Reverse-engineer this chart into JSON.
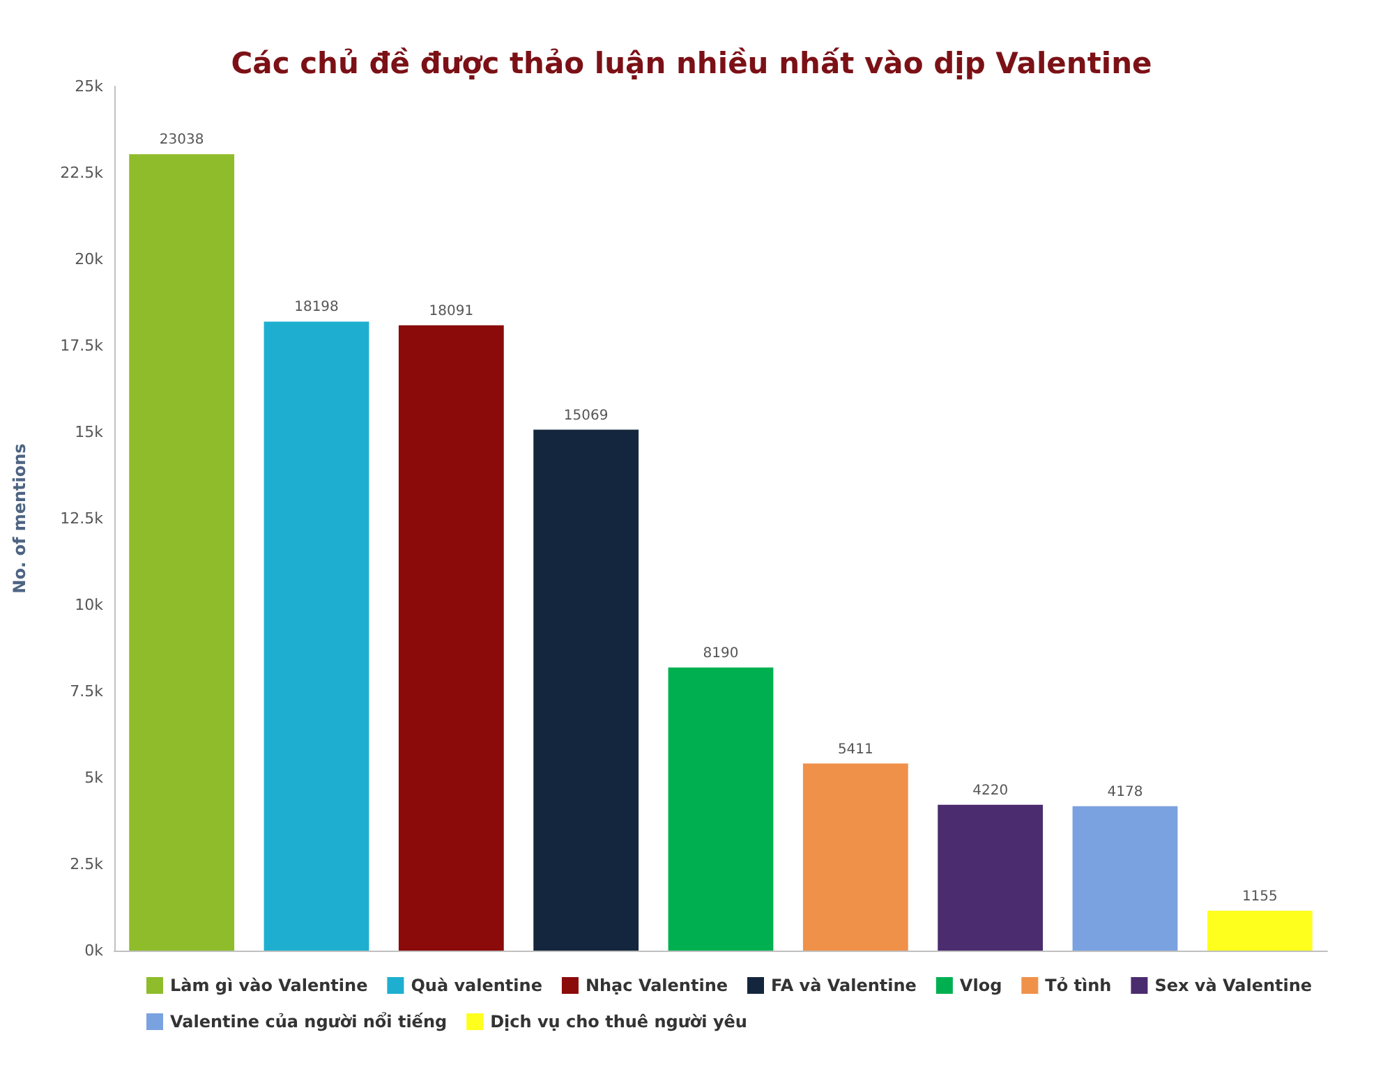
{
  "chart_data": {
    "type": "bar",
    "title": "Các chủ đề được thảo luận nhiều nhất vào dịp Valentine",
    "ylabel": "No. of mentions",
    "categories": [
      null,
      null,
      null,
      null,
      null,
      null,
      null,
      null,
      null
    ],
    "series": [
      {
        "name": "Làm gì vào Valentine",
        "color": "#8fbc2b",
        "values": [
          23038,
          null,
          null,
          null,
          null,
          null,
          null,
          null,
          null
        ]
      },
      {
        "name": "Quà valentine",
        "color": "#1eafd0",
        "values": [
          null,
          18198,
          null,
          null,
          null,
          null,
          null,
          null,
          null
        ]
      },
      {
        "name": "Nhạc Valentine",
        "color": "#8b0a0a",
        "values": [
          null,
          null,
          18091,
          null,
          null,
          null,
          null,
          null,
          null
        ]
      },
      {
        "name": "FA và Valentine",
        "color": "#14263d",
        "values": [
          null,
          null,
          null,
          15069,
          null,
          null,
          null,
          null,
          null
        ]
      },
      {
        "name": "Vlog",
        "color": "#00b050",
        "values": [
          null,
          null,
          null,
          null,
          8190,
          null,
          null,
          null,
          null
        ]
      },
      {
        "name": "Tỏ tình",
        "color": "#f0914a",
        "values": [
          null,
          null,
          null,
          null,
          null,
          5411,
          null,
          null,
          null
        ]
      },
      {
        "name": "Sex và Valentine",
        "color": "#4b2c6e",
        "values": [
          null,
          null,
          null,
          null,
          null,
          null,
          4220,
          null,
          null
        ]
      },
      {
        "name": "Valentine của người nổi tiếng",
        "color": "#7ba2e0",
        "values": [
          null,
          null,
          null,
          null,
          null,
          null,
          null,
          4178,
          null
        ]
      },
      {
        "name": "Dịch vụ cho thuê người yêu",
        "color": "#ffff1e",
        "values": [
          null,
          null,
          null,
          null,
          null,
          null,
          null,
          null,
          1155
        ]
      }
    ],
    "ylim": [
      0,
      25000
    ],
    "yticks": [
      {
        "value": 0,
        "label": "0k"
      },
      {
        "value": 2500,
        "label": "2.5k"
      },
      {
        "value": 5000,
        "label": "5k"
      },
      {
        "value": 7500,
        "label": "7.5k"
      },
      {
        "value": 10000,
        "label": "10k"
      },
      {
        "value": 12500,
        "label": "12.5k"
      },
      {
        "value": 15000,
        "label": "15k"
      },
      {
        "value": 17500,
        "label": "17.5k"
      },
      {
        "value": 20000,
        "label": "20k"
      },
      {
        "value": 22500,
        "label": "22.5k"
      },
      {
        "value": 25000,
        "label": "25k"
      }
    ],
    "grid": false,
    "legend": "bottom",
    "data_labels": true
  }
}
